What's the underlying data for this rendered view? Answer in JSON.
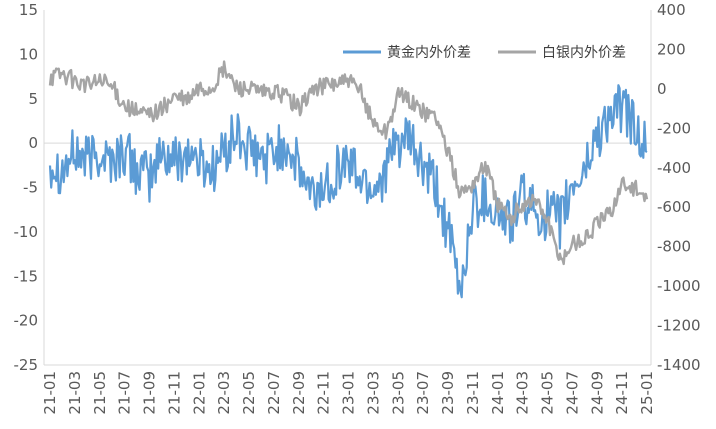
{
  "chart_data": {
    "type": "line",
    "title": "",
    "legend_position": "top-right",
    "grid": false,
    "x_axis": {
      "categories": [
        "21-01",
        "21-03",
        "21-05",
        "21-07",
        "21-09",
        "21-11",
        "22-01",
        "22-03",
        "22-05",
        "22-07",
        "22-09",
        "22-11",
        "23-01",
        "23-03",
        "23-05",
        "23-07",
        "23-09",
        "23-11",
        "24-01",
        "24-03",
        "24-05",
        "24-07",
        "24-09",
        "24-11",
        "25-01"
      ]
    },
    "y_left": {
      "ylim": [
        -25,
        15
      ],
      "ticks": [
        -25,
        -20,
        -15,
        -10,
        -5,
        0,
        5,
        10,
        15
      ],
      "tick_labels": [
        "-25",
        "-20",
        "-15",
        "-10",
        "-5",
        "0",
        "5",
        "10",
        "15"
      ]
    },
    "y_right": {
      "ylim": [
        -1400,
        400
      ],
      "ticks": [
        -1400,
        -1200,
        -1000,
        -800,
        -600,
        -400,
        -200,
        0,
        200,
        400
      ],
      "tick_labels": [
        "-1400",
        "-1200",
        "-1000",
        "-800",
        "-600",
        "-400",
        "-200",
        "0",
        "200",
        "400"
      ]
    },
    "series": [
      {
        "name": "黄金内外价差",
        "axis": "left",
        "color": "#5B9BD5",
        "x": [
          "21-01",
          "21-02",
          "21-03",
          "21-04",
          "21-05",
          "21-06",
          "21-07",
          "21-08",
          "21-09",
          "21-10",
          "21-11",
          "21-12",
          "22-01",
          "22-02",
          "22-03",
          "22-04",
          "22-05",
          "22-06",
          "22-07",
          "22-08",
          "22-09",
          "22-10",
          "22-11",
          "22-12",
          "23-01",
          "23-02",
          "23-03",
          "23-04",
          "23-05",
          "23-06",
          "23-07",
          "23-08",
          "23-09",
          "23-10",
          "23-11",
          "23-12",
          "24-01",
          "24-02",
          "24-03",
          "24-04",
          "24-05",
          "24-06",
          "24-07",
          "24-08",
          "24-09",
          "24-10",
          "24-11",
          "24-12",
          "25-01"
        ],
        "values": [
          -2,
          -3,
          -1,
          -2,
          -1,
          -2,
          -1,
          -3,
          -4,
          -1,
          -2,
          -1,
          -2,
          -3,
          -1,
          1,
          -1,
          -2,
          -1,
          0,
          -3,
          -6,
          -5,
          -3,
          -2,
          -4,
          -5,
          -3,
          0,
          0,
          -3,
          -5,
          -10,
          -17,
          -7,
          -6,
          -8,
          -9,
          -6,
          -8,
          -8,
          -9,
          -5,
          -3,
          1,
          3,
          4,
          2,
          -1
        ]
      },
      {
        "name": "白银内外价差",
        "axis": "right",
        "color": "#A5A5A5",
        "x": [
          "21-01",
          "21-02",
          "21-03",
          "21-04",
          "21-05",
          "21-06",
          "21-07",
          "21-08",
          "21-09",
          "21-10",
          "21-11",
          "21-12",
          "22-01",
          "22-02",
          "22-03",
          "22-04",
          "22-05",
          "22-06",
          "22-07",
          "22-08",
          "22-09",
          "22-10",
          "22-11",
          "22-12",
          "23-01",
          "23-02",
          "23-03",
          "23-04",
          "23-05",
          "23-06",
          "23-07",
          "23-08",
          "23-09",
          "23-10",
          "23-11",
          "23-12",
          "24-01",
          "24-02",
          "24-03",
          "24-04",
          "24-05",
          "24-06",
          "24-07",
          "24-08",
          "24-09",
          "24-10",
          "24-11",
          "24-12",
          "25-01"
        ],
        "values": [
          60,
          80,
          40,
          20,
          40,
          10,
          -80,
          -120,
          -130,
          -100,
          -40,
          -60,
          0,
          0,
          100,
          10,
          0,
          -20,
          -20,
          -30,
          -100,
          -10,
          20,
          30,
          40,
          -20,
          -170,
          -220,
          -30,
          -60,
          -120,
          -130,
          -320,
          -530,
          -480,
          -380,
          -580,
          -670,
          -580,
          -560,
          -660,
          -880,
          -780,
          -760,
          -680,
          -630,
          -480,
          -500,
          -560
        ]
      }
    ]
  }
}
